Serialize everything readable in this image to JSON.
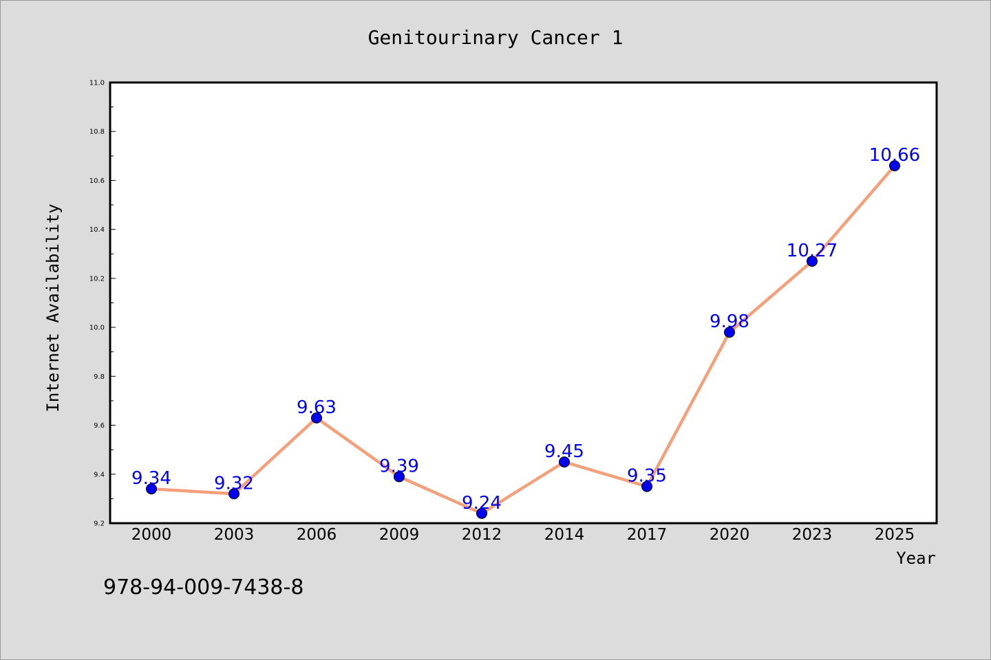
{
  "chart_data": {
    "type": "line",
    "title": "Genitourinary Cancer 1",
    "xlabel": "Year",
    "ylabel": "Internet Availability",
    "categories": [
      "2000",
      "2003",
      "2006",
      "2009",
      "2012",
      "2014",
      "2017",
      "2020",
      "2023",
      "2025"
    ],
    "series": [
      {
        "values": [
          9.34,
          9.32,
          9.63,
          9.39,
          9.24,
          9.45,
          9.35,
          9.98,
          10.27,
          10.66
        ]
      }
    ],
    "data_labels": [
      "9.34",
      "9.32",
      "9.63",
      "9.39",
      "9.24",
      "9.45",
      "9.35",
      "9.98",
      "10.27",
      "10.66"
    ],
    "ylim": [
      9.2,
      11.0
    ],
    "yticks": [
      "9.2",
      "9.4",
      "9.6",
      "9.8",
      "10.0",
      "10.2",
      "10.4",
      "10.6",
      "10.8",
      "11.0"
    ],
    "grid": false,
    "legend": "none",
    "colors": {
      "line": "#f4a07a",
      "marker": "#0000ee",
      "label": "#0000ee"
    }
  },
  "annotation": {
    "isbn": "978-94-009-7438-8"
  }
}
